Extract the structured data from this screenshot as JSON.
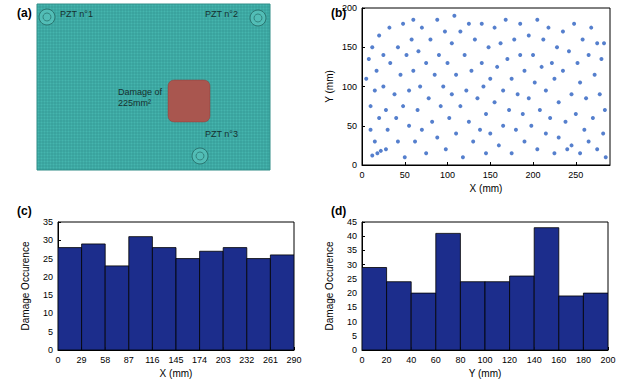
{
  "chart_data": [
    {
      "type": "diagram",
      "title": "(a)",
      "annotations": [
        "PZT n°1",
        "PZT n°2",
        "PZT n°3",
        "Damage of\n225mm²"
      ]
    },
    {
      "type": "scatter",
      "title": "(b)",
      "xlabel": "X (mm)",
      "ylabel": "Y (mm)",
      "color": "#2b5fc0",
      "marker": "circle",
      "grid": false,
      "xlim": [
        0,
        290
      ],
      "xticks": [
        0,
        50,
        100,
        150,
        200,
        250
      ],
      "ylim": [
        0,
        200
      ],
      "yticks": [
        0,
        50,
        100,
        150,
        200
      ],
      "x": [
        5,
        8,
        10,
        10,
        12,
        12,
        15,
        15,
        17,
        18,
        20,
        20,
        22,
        25,
        25,
        28,
        28,
        30,
        32,
        33,
        38,
        40,
        42,
        42,
        45,
        48,
        48,
        50,
        52,
        55,
        55,
        58,
        60,
        60,
        62,
        65,
        66,
        68,
        70,
        70,
        75,
        75,
        78,
        80,
        82,
        85,
        88,
        88,
        90,
        92,
        95,
        97,
        98,
        100,
        102,
        105,
        105,
        108,
        110,
        110,
        115,
        115,
        118,
        120,
        122,
        125,
        125,
        128,
        130,
        132,
        135,
        138,
        140,
        140,
        142,
        145,
        145,
        148,
        150,
        150,
        155,
        155,
        158,
        160,
        162,
        165,
        165,
        168,
        170,
        172,
        175,
        175,
        178,
        180,
        182,
        185,
        185,
        188,
        190,
        190,
        195,
        195,
        198,
        200,
        202,
        205,
        205,
        208,
        210,
        212,
        215,
        215,
        218,
        220,
        222,
        225,
        225,
        228,
        230,
        230,
        235,
        235,
        238,
        240,
        242,
        245,
        245,
        248,
        250,
        252,
        255,
        255,
        258,
        260,
        262,
        265,
        265,
        268,
        270,
        272,
        275,
        275,
        278,
        280,
        282,
        283,
        284,
        285
      ],
      "values": [
        110,
        135,
        75,
        45,
        150,
        12,
        95,
        30,
        120,
        15,
        60,
        165,
        18,
        140,
        100,
        70,
        20,
        45,
        175,
        130,
        90,
        60,
        150,
        30,
        115,
        180,
        75,
        10,
        140,
        95,
        50,
        160,
        185,
        120,
        30,
        70,
        145,
        100,
        175,
        45,
        130,
        15,
        85,
        160,
        55,
        115,
        185,
        35,
        140,
        75,
        100,
        170,
        20,
        130,
        60,
        155,
        90,
        190,
        40,
        115,
        170,
        75,
        10,
        140,
        95,
        55,
        180,
        120,
        30,
        160,
        85,
        45,
        130,
        180,
        100,
        15,
        65,
        150,
        110,
        40,
        175,
        80,
        125,
        25,
        155,
        95,
        50,
        185,
        135,
        70,
        110,
        15,
        160,
        45,
        90,
        140,
        180,
        65,
        120,
        30,
        165,
        85,
        50,
        140,
        105,
        20,
        185,
        70,
        125,
        160,
        40,
        95,
        175,
        60,
        130,
        110,
        15,
        150,
        80,
        35,
        170,
        120,
        55,
        20,
        145,
        90,
        25,
        180,
        65,
        130,
        15,
        105,
        160,
        45,
        85,
        140,
        30,
        175,
        60,
        115,
        155,
        20,
        90,
        135,
        40,
        155,
        70,
        10
      ]
    },
    {
      "type": "histogram",
      "title": "(c)",
      "xlabel": "X (mm)",
      "ylabel": "Damage Occurence",
      "color": "#1c2d8c",
      "grid": false,
      "bins": [
        0,
        29,
        58,
        87,
        116,
        145,
        174,
        203,
        232,
        261,
        290
      ],
      "values": [
        28,
        29,
        23,
        31,
        28,
        25,
        27,
        28,
        25,
        26
      ],
      "xlim": [
        0,
        290
      ],
      "xticks": [
        0,
        29,
        58,
        87,
        116,
        145,
        174,
        203,
        232,
        261,
        290
      ],
      "ylim": [
        0,
        35
      ],
      "yticks": [
        0,
        5,
        10,
        15,
        20,
        25,
        30,
        35
      ]
    },
    {
      "type": "histogram",
      "title": "(d)",
      "xlabel": "Y (mm)",
      "ylabel": "Damage Occurence",
      "color": "#1c2d8c",
      "grid": false,
      "bins": [
        0,
        20,
        40,
        60,
        80,
        100,
        120,
        140,
        160,
        180,
        200
      ],
      "values": [
        29,
        24,
        20,
        41,
        24,
        24,
        26,
        43,
        19,
        20
      ],
      "xlim": [
        0,
        200
      ],
      "xticks": [
        0,
        20,
        40,
        60,
        80,
        100,
        120,
        140,
        160,
        180,
        200
      ],
      "ylim": [
        0,
        45
      ],
      "yticks": [
        0,
        5,
        10,
        15,
        20,
        25,
        30,
        35,
        40,
        45
      ]
    }
  ]
}
